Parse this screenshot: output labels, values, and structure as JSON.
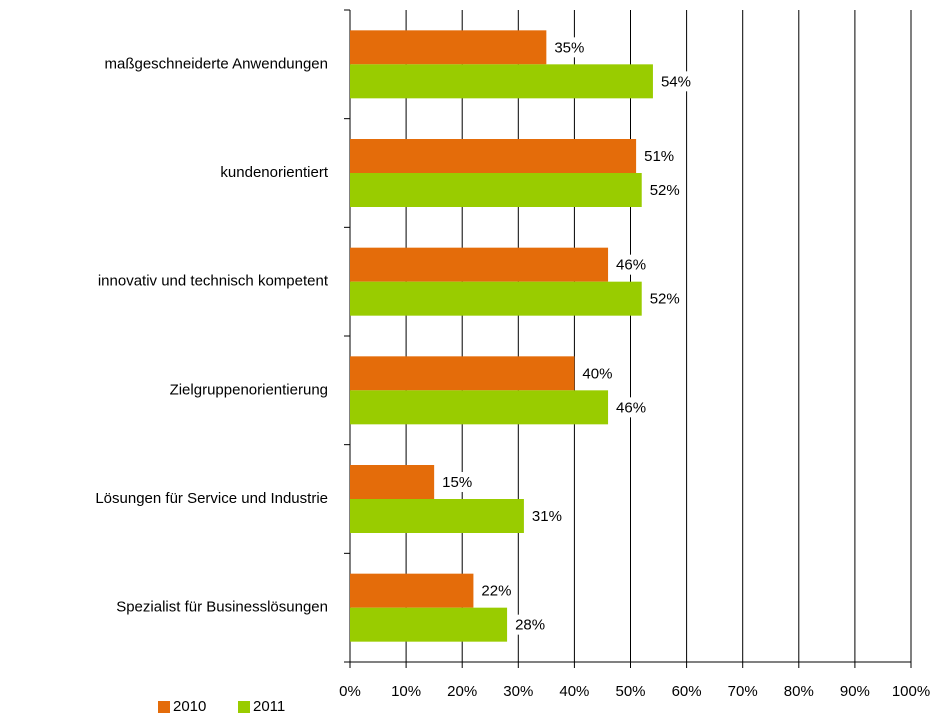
{
  "chart_data": {
    "type": "bar",
    "orientation": "horizontal",
    "categories": [
      "maßgeschneiderte Anwendungen",
      "kundenorientiert",
      "innovativ und technisch kompetent",
      "Zielgruppenorientierung",
      "Lösungen für Service und Industrie",
      "Spezialist für Businesslösungen"
    ],
    "series": [
      {
        "name": "2010",
        "color": "#e46c0a",
        "values": [
          35,
          51,
          46,
          40,
          15,
          22
        ],
        "value_labels": [
          "35%",
          "51%",
          "46%",
          "40%",
          "15%",
          "22%"
        ]
      },
      {
        "name": "2011",
        "color": "#99cc00",
        "values": [
          54,
          52,
          52,
          46,
          31,
          28
        ],
        "value_labels": [
          "54%",
          "52%",
          "52%",
          "46%",
          "31%",
          "28%"
        ]
      }
    ],
    "xlim": [
      0,
      100
    ],
    "xticks": [
      {
        "value": 0,
        "label": "0%"
      },
      {
        "value": 10,
        "label": "10%"
      },
      {
        "value": 20,
        "label": "20%"
      },
      {
        "value": 30,
        "label": "30%"
      },
      {
        "value": 40,
        "label": "40%"
      },
      {
        "value": 50,
        "label": "50%"
      },
      {
        "value": 60,
        "label": "60%"
      },
      {
        "value": 70,
        "label": "70%"
      },
      {
        "value": 80,
        "label": "80%"
      },
      {
        "value": 90,
        "label": "90%"
      },
      {
        "value": 100,
        "label": "100%"
      }
    ],
    "grid": true,
    "legend": "bottom-left"
  }
}
